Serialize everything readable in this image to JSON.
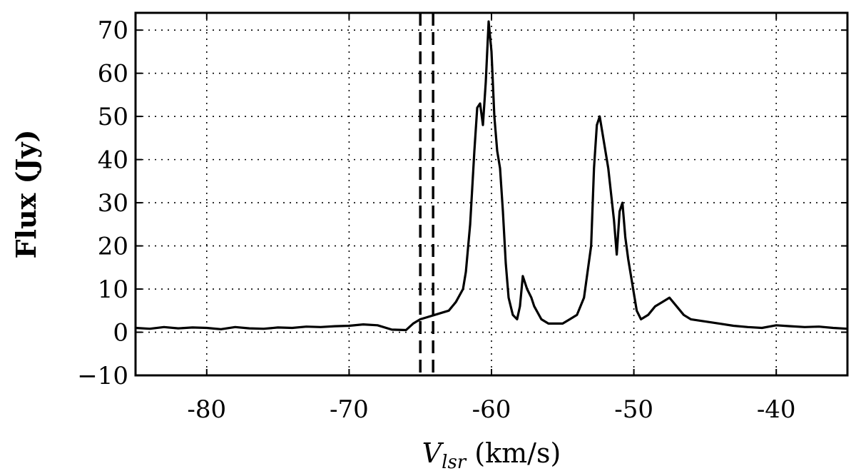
{
  "chart_data": {
    "type": "line",
    "xlabel": "V_lsr (km/s)",
    "xlabel_main": "V",
    "xlabel_sub": "lsr",
    "xlabel_unit": " (km/s)",
    "ylabel": "Flux (Jy)",
    "xlim": [
      -85,
      -35
    ],
    "ylim": [
      -10,
      74
    ],
    "xticks": [
      -80,
      -70,
      -60,
      -50,
      -40
    ],
    "xtick_labels": [
      "-80",
      "-70",
      "-60",
      "-50",
      "-40"
    ],
    "yticks": [
      -10,
      0,
      10,
      20,
      30,
      40,
      50,
      60,
      70
    ],
    "ytick_labels": [
      "−10",
      "0",
      "10",
      "20",
      "30",
      "40",
      "50",
      "60",
      "70"
    ],
    "grid": true,
    "line_color": "#000000",
    "vertical_dashed_lines_x": [
      -65.0,
      -64.1
    ],
    "series": [
      {
        "x": [
          -85,
          -84,
          -83,
          -82,
          -81,
          -80,
          -79,
          -78,
          -77,
          -76,
          -75,
          -74,
          -73,
          -72,
          -71,
          -70,
          -69,
          -68,
          -67,
          -66,
          -65.5,
          -65,
          -64.5,
          -64,
          -63.5,
          -63,
          -62.5,
          -62,
          -61.8,
          -61.5,
          -61.2,
          -61,
          -60.8,
          -60.6,
          -60.4,
          -60.2,
          -60,
          -59.8,
          -59.6,
          -59.4,
          -59.2,
          -59,
          -58.8,
          -58.5,
          -58.2,
          -58,
          -57.8,
          -57.5,
          -57.2,
          -57,
          -56.5,
          -56,
          -55.5,
          -55,
          -54.5,
          -54,
          -53.5,
          -53,
          -52.8,
          -52.6,
          -52.4,
          -52.2,
          -52,
          -51.8,
          -51.6,
          -51.4,
          -51.2,
          -51,
          -50.8,
          -50.6,
          -50.4,
          -50.2,
          -50,
          -49.8,
          -49.5,
          -49,
          -48.5,
          -48,
          -47.5,
          -47,
          -46.5,
          -46,
          -45,
          -44,
          -43,
          -42,
          -41,
          -40,
          -39,
          -38,
          -37,
          -36,
          -35
        ],
        "y": [
          1,
          0.8,
          1.2,
          0.9,
          1.1,
          1.0,
          0.7,
          1.2,
          0.9,
          0.8,
          1.1,
          1.0,
          1.3,
          1.2,
          1.4,
          1.5,
          1.8,
          1.6,
          0.6,
          0.5,
          2,
          3,
          3.5,
          4,
          4.5,
          5,
          7,
          10,
          14,
          25,
          42,
          52,
          53,
          48,
          58,
          72,
          65,
          50,
          42,
          38,
          28,
          16,
          8,
          4,
          3,
          6,
          13,
          10,
          8,
          6,
          3,
          2,
          2,
          2,
          3,
          4,
          8,
          20,
          38,
          48,
          50,
          46,
          42,
          38,
          32,
          26,
          18,
          28,
          30,
          22,
          17,
          13,
          9,
          5,
          3,
          4,
          6,
          7,
          8,
          6,
          4,
          3,
          2.5,
          2,
          1.5,
          1.2,
          1.0,
          1.6,
          1.4,
          1.2,
          1.3,
          1.0,
          0.8
        ]
      }
    ]
  }
}
